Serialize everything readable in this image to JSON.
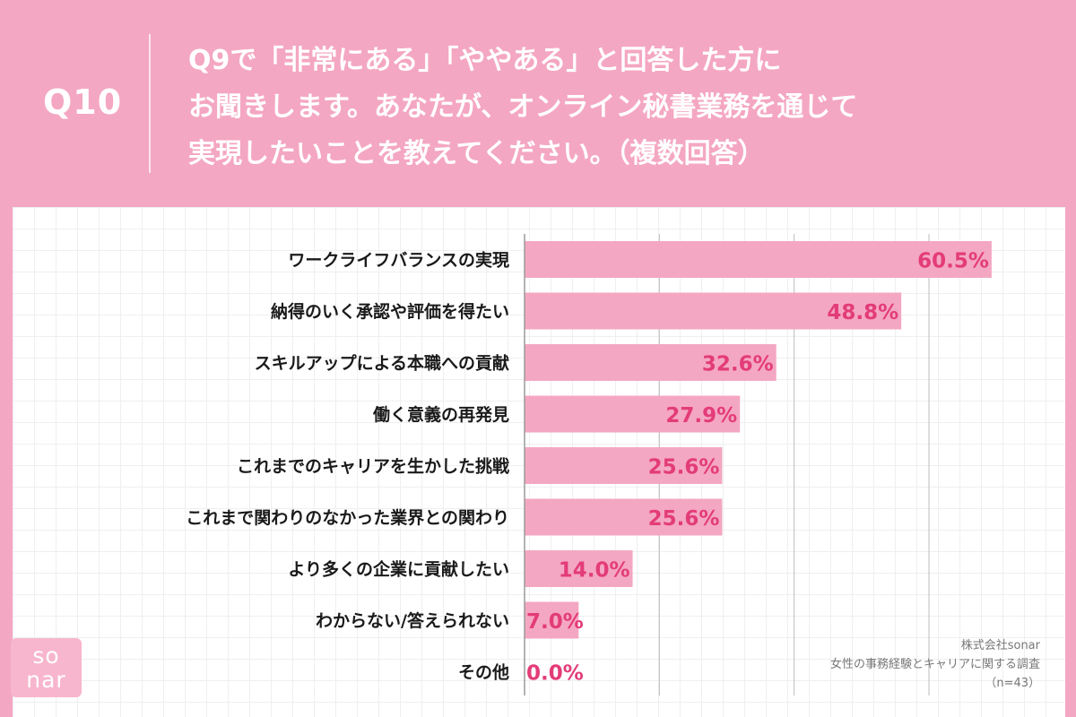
{
  "header": {
    "question_number": "Q10",
    "question_lines": [
      "Q9で「非常にある」「ややある」と回答した方に",
      "お聞きします。あなたが、オンライン秘書業務を通じて",
      "実現したいことを教えてください。（複数回答）"
    ]
  },
  "logo": {
    "line1": "so",
    "line2": "nar"
  },
  "credit": {
    "company": "株式会社sonar",
    "survey": "女性の事務経験とキャリアに関する調査",
    "sample": "（n=43）"
  },
  "colors": {
    "background": "#f4a7c2",
    "bar": "#f4a7c2",
    "value_text": "#e33c78"
  },
  "chart_data": {
    "type": "bar",
    "orientation": "horizontal",
    "categories": [
      "ワークライフバランスの実現",
      "納得のいく承認や評価を得たい",
      "スキルアップによる本職への貢献",
      "働く意義の再発見",
      "これまでのキャリアを生かした挑戦",
      "これまで関わりのなかった業界との関わり",
      "より多くの企業に貢献したい",
      "わからない/答えられない",
      "その他"
    ],
    "values": [
      60.5,
      48.8,
      32.6,
      27.9,
      25.6,
      25.6,
      14.0,
      7.0,
      0.0
    ],
    "value_labels": [
      "60.5%",
      "48.8%",
      "32.6%",
      "27.9%",
      "25.6%",
      "25.6%",
      "14.0%",
      "7.0%",
      "0.0%"
    ],
    "xlim": [
      0,
      70
    ],
    "grid": true
  }
}
